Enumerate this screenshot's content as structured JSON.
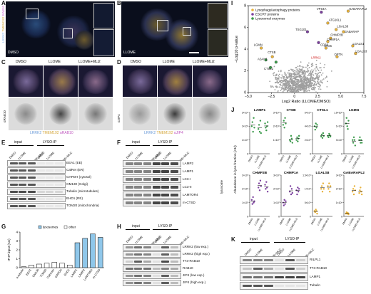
{
  "panels": {
    "A": {
      "letter": "A",
      "label": "DMSO",
      "chan": [
        "LRRK2",
        "TMEM192",
        "RAB10"
      ]
    },
    "B": {
      "letter": "B",
      "label": "LLOME"
    },
    "C": {
      "letter": "C",
      "conds": [
        "DMSO",
        "LLOME",
        "LLOME+MLi2"
      ],
      "side": "αRAB10",
      "legend": [
        "LRRK2",
        "TMEM192",
        "αRAB10"
      ]
    },
    "D": {
      "letter": "D",
      "conds": [
        "DMSO",
        "LLOME",
        "LLOME+MLi2"
      ],
      "side": "αJIP4",
      "legend": [
        "LRRK2",
        "TMEM192",
        "αJIP4"
      ]
    },
    "E": {
      "letter": "E",
      "groups": [
        "input",
        "LYSO-IP"
      ],
      "conds": [
        "DMSO",
        "LLOME",
        "LLOME+MLi2",
        "DMSO",
        "LLOME",
        "LLOME+MLi2"
      ],
      "rows": [
        "EEA1 (EE)",
        "CalRet (ER)",
        "GAPDH (cytosol)",
        "GM130 (Golgi)",
        "Tubulin (microtubules)",
        "EHD1 (RE)",
        "TOM20 (mitochondria)"
      ]
    },
    "F": {
      "letter": "F",
      "groups": [
        "input",
        "LYSO-IP"
      ],
      "conds": [
        "DMSO",
        "LLOME",
        "LLOME+MLi2",
        "DMSO",
        "LLOME",
        "LLOME+MLi2"
      ],
      "rows": [
        "LAMP2",
        "LAMP1",
        "LC3-I",
        "LC3-II",
        "LAMTOR4",
        "m-CTSD"
      ],
      "side": "lysosome"
    },
    "G": {
      "letter": "G",
      "legend": [
        "lysosomes",
        "other"
      ]
    },
    "H": {
      "letter": "H",
      "groups": [
        "input",
        "LYSO-IP"
      ],
      "conds": [
        "DMSO",
        "LLOME",
        "LLOME+MLi2",
        "DMSO",
        "LLOME",
        "LLOME+MLi2"
      ],
      "rows": [
        "LRRK2 (low exp.)",
        "LRRK2 (high exp.)",
        "T73-RAB10",
        "RAB10",
        "JIP4 (low exp.)",
        "JIP4 (high exp.)"
      ]
    },
    "I": {
      "letter": "I",
      "legend": [
        "Lysophagy/autophagy proteins",
        "ESCRT proteins",
        "Lysosomal enzymes"
      ]
    },
    "J": {
      "letter": "J"
    },
    "K": {
      "letter": "K",
      "groups": [
        "input",
        "LYSO-IP"
      ],
      "conds": [
        "DMSO",
        "LLOME",
        "LLOME+MLi2",
        "DMSO",
        "LLOME",
        "LLOME+MLi2"
      ],
      "rows": [
        "RILPL1",
        "T73-RAB10",
        "LAMP1",
        "Tubulin"
      ]
    }
  },
  "chart_data": [
    {
      "type": "bar",
      "panel": "G",
      "ylabel": "IP:IP input (AU)",
      "ylim": [
        0,
        4
      ],
      "yticks": [
        "0",
        "1",
        "2",
        "3",
        "4"
      ],
      "categories": [
        "α-tubulin",
        "EEA1",
        "GM130",
        "TOM20",
        "Calnexin",
        "GAPDH",
        "EHD1",
        "LAMP1",
        "LAMP2",
        "LAMTOR4",
        "m-CTSD"
      ],
      "series": [
        {
          "name": "lysosomes",
          "values": [
            null,
            null,
            null,
            null,
            null,
            null,
            null,
            2.8,
            3.3,
            3.8,
            3.4
          ]
        },
        {
          "name": "other",
          "values": [
            0.1,
            0.3,
            0.4,
            0.5,
            0.6,
            0.5,
            0.3,
            null,
            null,
            null,
            null
          ]
        }
      ]
    },
    {
      "type": "scatter",
      "panel": "I",
      "xlabel": "Log2 Ratio (LLOME/DMSO)",
      "ylabel": "−Log10 p-value",
      "xlim": [
        -5,
        7.5
      ],
      "ylim": [
        0,
        8
      ],
      "xticks": [
        "−5.0",
        "−2.5",
        "0",
        "2.5",
        "5.0",
        "7.5"
      ],
      "yticks": [
        "0",
        "2",
        "4",
        "6",
        "8"
      ],
      "series": [
        {
          "name": "Lysophagy/autophagy proteins",
          "color": "#e8b23a",
          "points": [
            {
              "label": "GABARAPL2",
              "x": 5.8,
              "y": 7.5
            },
            {
              "label": "ATG16L1",
              "x": 3.6,
              "y": 6.4
            },
            {
              "label": "LGALS8",
              "x": 4.5,
              "y": 5.8
            },
            {
              "label": "GABARAP",
              "x": 5.3,
              "y": 5.6
            },
            {
              "label": "CHMP2B",
              "x": 3.9,
              "y": 5.0
            },
            {
              "label": "CHMP1A",
              "x": 3.6,
              "y": 4.7
            },
            {
              "label": "ATG5",
              "x": 3.4,
              "y": 4.1
            },
            {
              "label": "LGALS1",
              "x": 6.3,
              "y": 4.3
            },
            {
              "label": "LGALS3",
              "x": 6.6,
              "y": 3.6
            },
            {
              "label": "OPTN",
              "x": 4.6,
              "y": 3.3
            },
            {
              "label": "CTSB",
              "x": -2.4,
              "y": 3.3
            },
            {
              "label": "LGMN",
              "x": -3.6,
              "y": 4.1
            }
          ]
        },
        {
          "name": "ESCRT proteins",
          "color": "#7b3f9e",
          "points": [
            {
              "label": "VPS4A",
              "x": 2.9,
              "y": 7.4
            },
            {
              "label": "TSG101",
              "x": 1.4,
              "y": 5.6
            },
            {
              "label": "",
              "x": 2.6,
              "y": 4.6
            }
          ]
        },
        {
          "name": "Lysosomal enzymes",
          "color": "#3a9a4a",
          "points": [
            {
              "label": "CTSL2",
              "x": -2.6,
              "y": 2.3
            },
            {
              "label": "ASAH1",
              "x": -3.1,
              "y": 3.0
            },
            {
              "label": "",
              "x": -2.0,
              "y": 2.8
            }
          ]
        }
      ],
      "annotations": [
        "GABARAPL2",
        "VPS4A",
        "ATG16L1",
        "LGALS8",
        "GABARAP",
        "CHMP2B",
        "TSG101",
        "CHMP1A",
        "LGMN",
        "CTSB",
        "ASAH1",
        "CTSL2",
        "ATG5",
        "LGALS1",
        "LGALS3",
        "OPTN",
        "LRRK2",
        "CD38"
      ]
    },
    {
      "type": "scatter",
      "panel": "J",
      "ylabel": "Abundance in lyso fraction (AU)",
      "categories": [
        "DMSO",
        "LLOME",
        "LLOME+MLi2"
      ],
      "subplots": [
        {
          "title": "LAMP1",
          "color": "#3a9a4a",
          "yticks": [
            "0",
            "1×10⁸",
            "2×10⁸",
            "3×10⁸"
          ],
          "ymax": 3,
          "values": [
            [
              2.0,
              2.3,
              1.6,
              2.6,
              1.9
            ],
            [
              1.8,
              2.1,
              1.6,
              2.4,
              1.5
            ],
            [
              2.2,
              1.9,
              1.7,
              2.0,
              2.3
            ]
          ]
        },
        {
          "title": "CTSB",
          "color": "#3a9a4a",
          "yticks": [
            "0",
            "1×10⁹",
            "2×10⁹",
            "3×10⁹"
          ],
          "ymax": 3,
          "values": [
            [
              2.1,
              2.4,
              1.9,
              2.6,
              2.2
            ],
            [
              1.0,
              0.9,
              1.3,
              1.1,
              0.8
            ],
            [
              1.0,
              1.2,
              0.9,
              1.1,
              1.3
            ]
          ]
        },
        {
          "title": "CTSL1",
          "color": "#3a9a4a",
          "yticks": [
            "0",
            "2×10⁸",
            "4×10⁸",
            "6×10⁸"
          ],
          "ymax": 6,
          "values": [
            [
              4.0,
              3.5,
              4.4,
              3.8,
              4.2
            ],
            [
              2.5,
              2.8,
              2.3,
              3.0,
              2.6
            ],
            [
              2.6,
              2.4,
              2.9,
              2.7,
              2.5
            ]
          ]
        },
        {
          "title": "LGMN",
          "color": "#3a9a4a",
          "yticks": [
            "0",
            "5×10⁷",
            "1×10⁸",
            "1.5×10⁸"
          ],
          "ymax": 1.5,
          "values": [
            [
              1.1,
              1.3,
              1.0,
              0.9,
              1.2
            ],
            [
              0.5,
              0.4,
              0.6,
              0.5,
              0.3
            ],
            [
              0.5,
              0.6,
              0.4,
              0.5,
              0.4
            ]
          ]
        },
        {
          "title": "CHMP2B",
          "color": "#7b3f9e",
          "yticks": [
            "0",
            "1×10⁷",
            "2×10⁷",
            "3×10⁷"
          ],
          "ymax": 3,
          "values": [
            [
              1.2,
              0.9,
              1.4,
              1.0,
              1.1
            ],
            [
              2.1,
              2.4,
              1.9,
              2.6,
              2.2
            ],
            [
              2.3,
              2.0,
              2.5,
              2.1,
              1.8
            ]
          ]
        },
        {
          "title": "CHMP1A",
          "color": "#7b3f9e",
          "yticks": [
            "0",
            "1×10⁷",
            "2×10⁷",
            "3×10⁷"
          ],
          "ymax": 3,
          "values": [
            [
              1.0,
              0.8,
              1.2,
              0.9,
              1.1
            ],
            [
              1.8,
              2.2,
              1.6,
              2.0,
              1.7
            ],
            [
              1.9,
              1.6,
              2.1,
              1.8,
              2.0
            ]
          ]
        },
        {
          "title": "LGALS8",
          "color": "#e8b23a",
          "yticks": [
            "0",
            "5×10⁸",
            "1×10⁹",
            "1.5×10⁹"
          ],
          "ymax": 1.5,
          "values": [
            [
              0.2,
              0.15,
              0.25,
              0.2,
              0.1
            ],
            [
              1.0,
              1.1,
              0.9,
              1.2,
              1.0
            ],
            [
              1.1,
              1.0,
              1.2,
              0.9,
              1.1
            ]
          ]
        },
        {
          "title": "GABARAPL2",
          "color": "#e8b23a",
          "yticks": [
            "0",
            "1×10⁸",
            "2×10⁸",
            "3×10⁸"
          ],
          "ymax": 3,
          "values": [
            [
              0.2,
              0.3,
              0.2,
              0.25,
              0.15
            ],
            [
              1.8,
              2.0,
              1.6,
              2.2,
              1.9
            ],
            [
              1.7,
              1.9,
              2.1,
              1.8,
              1.6
            ]
          ]
        }
      ]
    }
  ]
}
